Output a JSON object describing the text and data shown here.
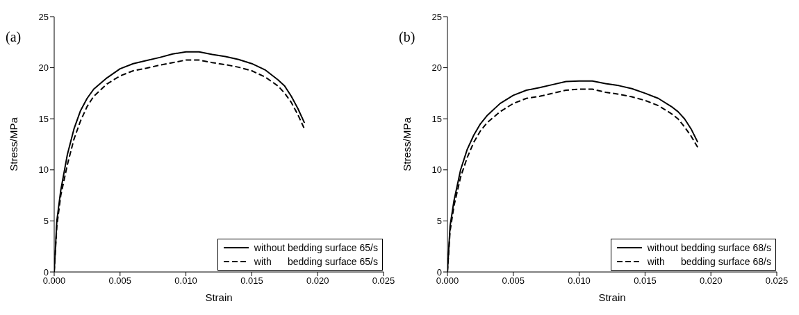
{
  "chart_data": [
    {
      "type": "line",
      "xlabel": "Strain",
      "ylabel": "Stress/MPa",
      "annotations": [
        "(a)"
      ],
      "xlim": [
        0,
        0.025
      ],
      "xticks": [
        {
          "value": 0,
          "label": "0.000"
        },
        {
          "value": 0.005,
          "label": "0.005"
        },
        {
          "value": 0.01,
          "label": "0.010"
        },
        {
          "value": 0.015,
          "label": "0.015"
        },
        {
          "value": 0.02,
          "label": "0.020"
        },
        {
          "value": 0.025,
          "label": "0.025"
        }
      ],
      "ylim": [
        0,
        25
      ],
      "yticks": [
        0,
        5,
        10,
        15,
        20,
        25
      ],
      "grid": false,
      "legend": "bottom right",
      "marker": "none",
      "x": [
        0,
        0.0002,
        0.0005,
        0.001,
        0.0015,
        0.002,
        0.0025,
        0.003,
        0.004,
        0.005,
        0.006,
        0.007,
        0.008,
        0.009,
        0.01,
        0.011,
        0.012,
        0.013,
        0.014,
        0.015,
        0.016,
        0.017,
        0.0175,
        0.018,
        0.0185,
        0.019
      ],
      "series": [
        {
          "name": "without bedding surface 65/s",
          "color": "#000000",
          "line_style": "solid",
          "values": [
            0,
            5,
            8,
            11.5,
            14,
            15.8,
            17,
            17.9,
            19,
            19.9,
            20.4,
            20.7,
            21,
            21.35,
            21.55,
            21.55,
            21.3,
            21.1,
            20.8,
            20.4,
            19.8,
            18.8,
            18.2,
            17.2,
            16,
            14.6
          ]
        },
        {
          "name": "with      bedding surface 65/s",
          "color": "#000000",
          "line_style": "dashed",
          "values": [
            0,
            4.5,
            7.5,
            10.5,
            13,
            14.8,
            16.2,
            17.2,
            18.4,
            19.2,
            19.7,
            19.95,
            20.25,
            20.5,
            20.75,
            20.75,
            20.5,
            20.3,
            20.05,
            19.7,
            19.1,
            18.2,
            17.5,
            16.6,
            15.4,
            14
          ]
        }
      ]
    },
    {
      "type": "line",
      "xlabel": "Strain",
      "ylabel": "Stress/MPa",
      "annotations": [
        "(b)"
      ],
      "xlim": [
        0,
        0.025
      ],
      "xticks": [
        {
          "value": 0,
          "label": "0.000"
        },
        {
          "value": 0.005,
          "label": "0.005"
        },
        {
          "value": 0.01,
          "label": "0.010"
        },
        {
          "value": 0.015,
          "label": "0.015"
        },
        {
          "value": 0.02,
          "label": "0.020"
        },
        {
          "value": 0.025,
          "label": "0.025"
        }
      ],
      "ylim": [
        0,
        25
      ],
      "yticks": [
        0,
        5,
        10,
        15,
        20,
        25
      ],
      "grid": false,
      "legend": "bottom right",
      "marker": "none",
      "x": [
        0,
        0.0002,
        0.0005,
        0.001,
        0.0015,
        0.002,
        0.0025,
        0.003,
        0.004,
        0.005,
        0.006,
        0.007,
        0.008,
        0.009,
        0.01,
        0.011,
        0.012,
        0.013,
        0.014,
        0.015,
        0.016,
        0.017,
        0.0175,
        0.018,
        0.0185,
        0.019
      ],
      "series": [
        {
          "name": "without bedding surface 68/s",
          "color": "#000000",
          "line_style": "solid",
          "values": [
            0,
            4.5,
            7,
            10,
            12,
            13.4,
            14.5,
            15.3,
            16.5,
            17.3,
            17.8,
            18.05,
            18.35,
            18.65,
            18.7,
            18.7,
            18.45,
            18.25,
            17.95,
            17.5,
            17,
            16.2,
            15.7,
            15,
            14,
            12.7
          ]
        },
        {
          "name": "with      bedding surface 68/s",
          "color": "#000000",
          "line_style": "dashed",
          "values": [
            0,
            4,
            6.5,
            9.3,
            11.2,
            12.7,
            13.8,
            14.6,
            15.7,
            16.5,
            17,
            17.2,
            17.5,
            17.8,
            17.9,
            17.9,
            17.6,
            17.4,
            17.15,
            16.8,
            16.3,
            15.5,
            15,
            14.2,
            13.3,
            12.2
          ]
        }
      ]
    }
  ]
}
